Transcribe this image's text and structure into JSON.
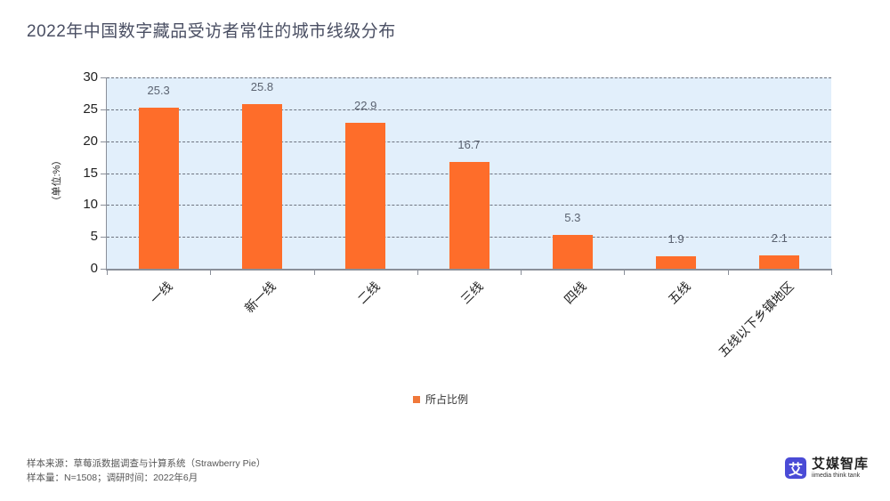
{
  "title": "2022年中国数字藏品受访者常住的城市线级分布",
  "chart_data": {
    "type": "bar",
    "title": "2022年中国数字藏品受访者常住的城市线级分布",
    "categories": [
      "一线",
      "新一线",
      "二线",
      "三线",
      "四线",
      "五线",
      "五线以下乡镇地区"
    ],
    "series": [
      {
        "name": "所占比例",
        "values": [
          25.3,
          25.8,
          22.9,
          16.7,
          5.3,
          1.9,
          2.1
        ],
        "color": "#fe6d2a"
      }
    ],
    "values": [
      25.3,
      25.8,
      22.9,
      16.7,
      5.3,
      1.9,
      2.1
    ],
    "value_labels": [
      "25.3",
      "25.8",
      "22.9",
      "16.7",
      "5.3",
      "1.9",
      "2.1"
    ],
    "xlabel": "",
    "ylabel": "（单位:%）",
    "ylim": [
      0,
      30
    ],
    "yticks": [
      "0",
      "5",
      "10",
      "15",
      "20",
      "25",
      "30"
    ],
    "grid": true,
    "grid_style": "dashed",
    "legend_position": "bottom-center",
    "plot_background": "#e2effb"
  },
  "legend": {
    "label": "所占比例",
    "color": "#f0783a"
  },
  "footer": {
    "source": "样本来源：草莓派数据调查与计算系统（Strawberry Pie）",
    "sample": "样本量：N=1508；调研时间：2022年6月"
  },
  "logo": {
    "mark": "艾",
    "name_cn": "艾媒智库",
    "name_en": "iimedia think tank"
  }
}
